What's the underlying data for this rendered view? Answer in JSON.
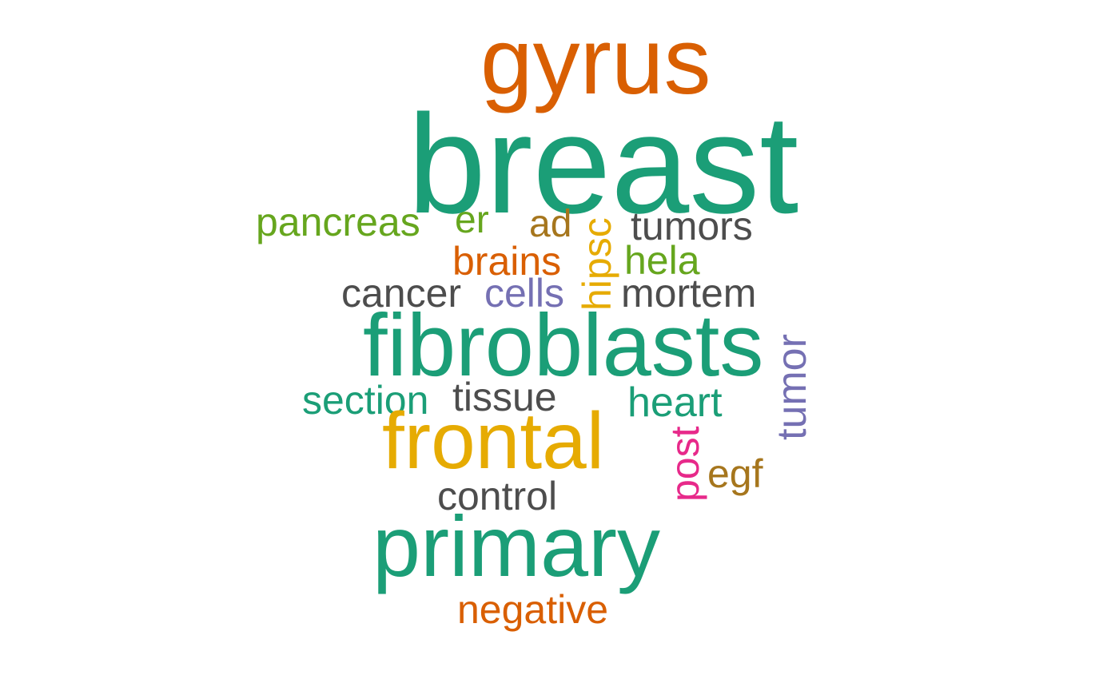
{
  "words": {
    "gyrus": {
      "text": "gyrus",
      "color": "#D95F02"
    },
    "breast": {
      "text": "breast",
      "color": "#1B9E77"
    },
    "pancreas": {
      "text": "pancreas",
      "color": "#66A61E"
    },
    "er": {
      "text": "er",
      "color": "#66A61E"
    },
    "ad": {
      "text": "ad",
      "color": "#A6761D"
    },
    "tumors": {
      "text": "tumors",
      "color": "#4D4D4D"
    },
    "brains": {
      "text": "brains",
      "color": "#D95F02"
    },
    "hela": {
      "text": "hela",
      "color": "#66A61E"
    },
    "cancer": {
      "text": "cancer",
      "color": "#4D4D4D"
    },
    "cells": {
      "text": "cells",
      "color": "#7570B3"
    },
    "mortem": {
      "text": "mortem",
      "color": "#4D4D4D"
    },
    "hipsc": {
      "text": "hipsc",
      "color": "#E6AB02"
    },
    "fibroblasts": {
      "text": "fibroblasts",
      "color": "#1B9E77"
    },
    "tumor": {
      "text": "tumor",
      "color": "#7570B3"
    },
    "section": {
      "text": "section",
      "color": "#1B9E77"
    },
    "tissue": {
      "text": "tissue",
      "color": "#4D4D4D"
    },
    "heart": {
      "text": "heart",
      "color": "#1B9E77"
    },
    "frontal": {
      "text": "frontal",
      "color": "#E6AB02"
    },
    "post": {
      "text": "post",
      "color": "#E7298A"
    },
    "egf": {
      "text": "egf",
      "color": "#A6761D"
    },
    "control": {
      "text": "control",
      "color": "#4D4D4D"
    },
    "primary": {
      "text": "primary",
      "color": "#1B9E77"
    },
    "negative": {
      "text": "negative",
      "color": "#D95F02"
    }
  }
}
